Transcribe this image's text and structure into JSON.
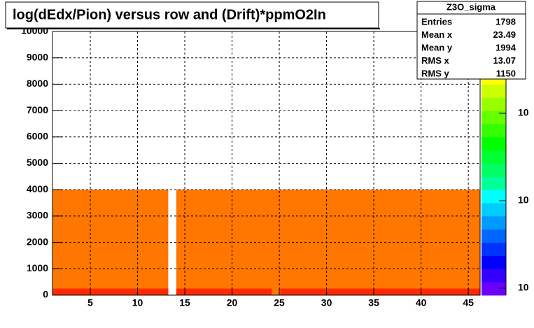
{
  "chart_data": {
    "type": "heatmap",
    "title": "log(dEdx/Pion) versus row and (Drift)*ppmO2In",
    "xlim": [
      1,
      46.25
    ],
    "ylim": [
      0,
      10000
    ],
    "xticks": [
      5,
      10,
      15,
      20,
      25,
      30,
      35,
      40,
      45
    ],
    "yticks": [
      0,
      1000,
      2000,
      3000,
      4000,
      5000,
      6000,
      7000,
      8000,
      9000,
      10000
    ],
    "grid": true,
    "cells": [
      {
        "x": [
          1,
          13.25
        ],
        "y": [
          0,
          4000
        ],
        "color": "#ff7700"
      },
      {
        "x": [
          14.1,
          46.25
        ],
        "y": [
          0,
          4000
        ],
        "color": "#ff7700"
      },
      {
        "x": [
          1,
          13.25
        ],
        "y": [
          0,
          250
        ],
        "color": "#ff2a00"
      },
      {
        "x": [
          14.1,
          24.2
        ],
        "y": [
          0,
          250
        ],
        "color": "#ff2a00"
      },
      {
        "x": [
          25.1,
          46.25
        ],
        "y": [
          0,
          250
        ],
        "color": "#ff2a00"
      }
    ],
    "palette": [
      "#6b00ff",
      "#3300ff",
      "#0000ff",
      "#0033ff",
      "#0066ff",
      "#0099ff",
      "#00ccff",
      "#00ffff",
      "#00ff99",
      "#00ff66",
      "#00ff33",
      "#00ff00",
      "#33ff00",
      "#66ff00",
      "#99ff00",
      "#ccff00",
      "#ffff00",
      "#ffcc00",
      "#ff9900",
      "#ff0000"
    ],
    "palette_labels": [
      "10",
      "10",
      "10"
    ],
    "stats": {
      "title": "Z3O_sigma",
      "entries": [
        {
          "name": "Entries",
          "value": "1798"
        },
        {
          "name": "Mean x",
          "value": "23.49"
        },
        {
          "name": "Mean y",
          "value": "1994"
        },
        {
          "name": "RMS x",
          "value": "13.07"
        },
        {
          "name": "RMS y",
          "value": "1150"
        }
      ]
    }
  }
}
